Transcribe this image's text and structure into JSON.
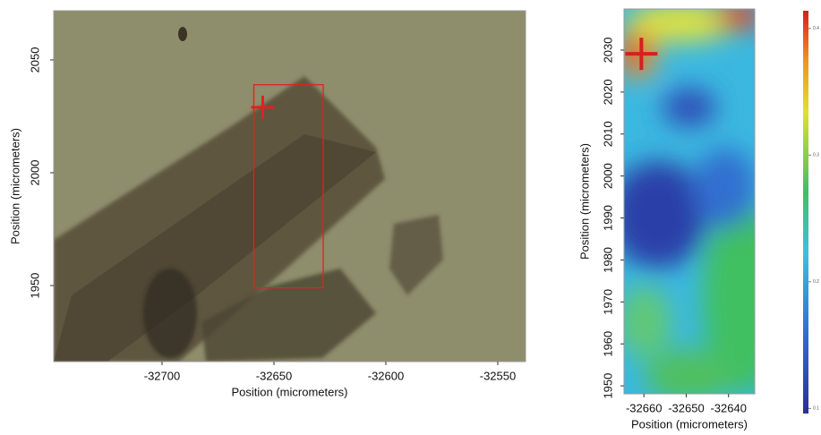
{
  "chart_data": [
    {
      "type": "image",
      "xlabel": "Position (micrometers)",
      "ylabel": "Position (micrometers)",
      "xlim": [
        -32748.4,
        -32537.6
      ],
      "ylim": [
        1916.3,
        2071.8
      ],
      "xticks": [
        -32700,
        -32650,
        -32600,
        -32550
      ],
      "yticks": [
        1950,
        2000,
        2050
      ],
      "roi": {
        "x": [
          -32659,
          -32628
        ],
        "y": [
          1949,
          2039
        ],
        "color": "#e52020"
      },
      "marker": {
        "x": -32655,
        "y": 2029,
        "color": "#e52020"
      }
    },
    {
      "type": "heatmap",
      "xlabel": "Position (micrometers)",
      "ylabel": "Position (micrometers)",
      "xlim": [
        -32664.7,
        -32633.8
      ],
      "ylim": [
        1948.1,
        2039.8
      ],
      "xticks": [
        -32660,
        -32650,
        -32640
      ],
      "yticks": [
        1950,
        1960,
        1970,
        1980,
        1990,
        2000,
        2010,
        2020,
        2030
      ],
      "marker": {
        "x": -32660.6,
        "y": 2029.1,
        "color": "#d42020"
      },
      "colorbar": {
        "lim": [
          0.096,
          0.414
        ],
        "ticks": [
          0.1,
          0.2,
          0.3,
          0.4
        ]
      }
    }
  ]
}
